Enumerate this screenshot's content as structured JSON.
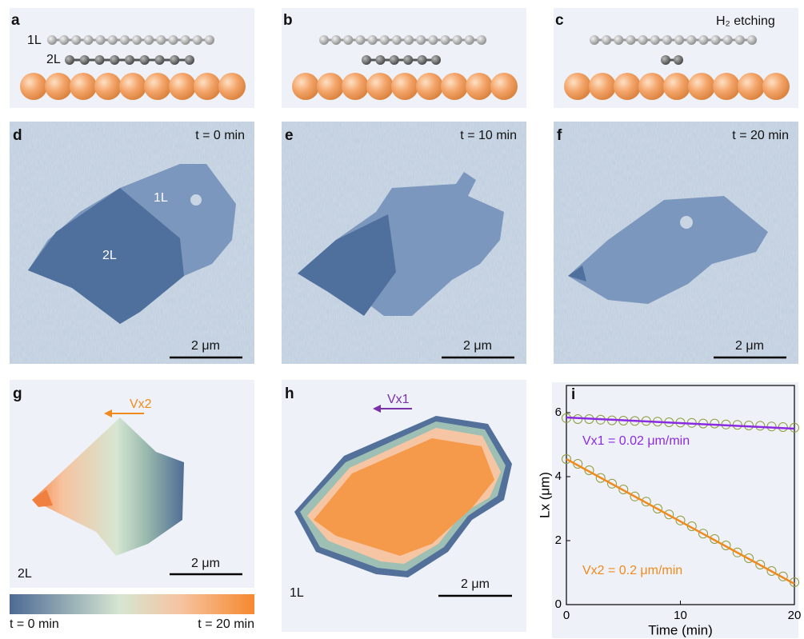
{
  "panels": {
    "a": "a",
    "b": "b",
    "c": "c",
    "d": "d",
    "e": "e",
    "f": "f",
    "g": "g",
    "h": "h",
    "i": "i"
  },
  "schematic": {
    "layer1": "1L",
    "layer2": "2L",
    "etching": "H₂ etching"
  },
  "images": {
    "d_time": "t = 0 min",
    "e_time": "t = 10 min",
    "f_time": "t = 20 min",
    "d_1L": "1L",
    "d_2L": "2L",
    "scale": "2 μm"
  },
  "maps": {
    "g_arrow": "Vx2",
    "h_arrow": "Vx1",
    "g_layer": "2L",
    "h_layer": "1L",
    "scale": "2 μm",
    "colorbar_min": "t = 0 min",
    "colorbar_max": "t = 20 min"
  },
  "chart_data": {
    "type": "scatter",
    "xlabel": "Time (min)",
    "ylabel": "Lx (μm)",
    "xlim": [
      0,
      20
    ],
    "ylim": [
      0,
      6.85
    ],
    "xticks": [
      0,
      10,
      20
    ],
    "yticks": [
      0,
      2,
      4,
      6
    ],
    "x": [
      0,
      1,
      2,
      3,
      4,
      5,
      6,
      7,
      8,
      9,
      10,
      11,
      12,
      13,
      14,
      15,
      16,
      17,
      18,
      19,
      20
    ],
    "series": [
      {
        "color": "#8f9a3a",
        "line_color": "#8a2be2",
        "values": [
          5.83,
          5.8,
          5.8,
          5.78,
          5.76,
          5.75,
          5.74,
          5.74,
          5.72,
          5.7,
          5.69,
          5.68,
          5.66,
          5.66,
          5.63,
          5.62,
          5.6,
          5.59,
          5.57,
          5.55,
          5.53
        ],
        "fit": [
          5.85,
          5.5
        ]
      },
      {
        "color": "#8f9a3a",
        "line_color": "#f08a1c",
        "values": [
          4.55,
          4.4,
          4.2,
          3.96,
          3.78,
          3.6,
          3.38,
          3.22,
          3.0,
          2.82,
          2.63,
          2.45,
          2.22,
          2.05,
          1.85,
          1.63,
          1.45,
          1.25,
          1.05,
          0.88,
          0.7
        ],
        "fit": [
          4.55,
          0.65
        ]
      }
    ],
    "fit_x": [
      0,
      20
    ],
    "annotations": [
      {
        "text": "Vx1 =  0.02 μm/min",
        "color": "#8a2be2",
        "x": 1.4,
        "y": 5.1
      },
      {
        "text": "Vx2 = 0.2 μm/min",
        "color": "#f08a1c",
        "x": 1.4,
        "y": 1.05
      }
    ]
  }
}
